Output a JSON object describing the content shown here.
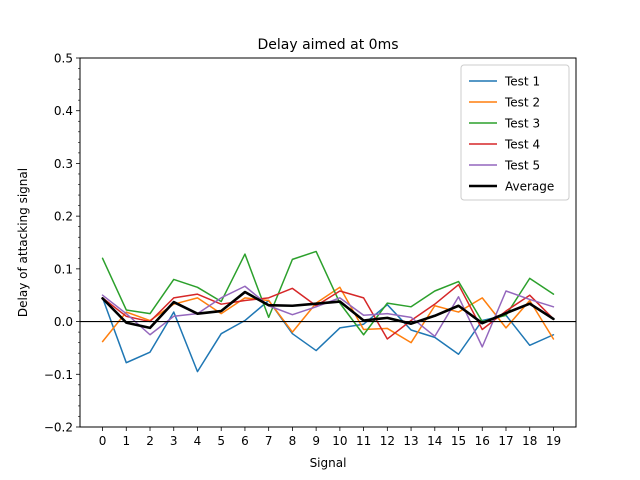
{
  "chart_data": {
    "type": "line",
    "title": "Delay aimed at 0ms",
    "xlabel": "Signal",
    "ylabel": "Delay of attacking signal",
    "x": [
      0,
      1,
      2,
      3,
      4,
      5,
      6,
      7,
      8,
      9,
      10,
      11,
      12,
      13,
      14,
      15,
      16,
      17,
      18,
      19
    ],
    "xlim": [
      -0.95,
      19.95
    ],
    "ylim": [
      -0.2,
      0.5
    ],
    "yticks": [
      -0.2,
      -0.1,
      0.0,
      0.1,
      0.2,
      0.3,
      0.4,
      0.5
    ],
    "ytick_labels": [
      "−0.2",
      "−0.1",
      "0.0",
      "0.1",
      "0.2",
      "0.3",
      "0.4",
      "0.5"
    ],
    "xtick_labels": [
      "0",
      "1",
      "2",
      "3",
      "4",
      "5",
      "6",
      "7",
      "8",
      "9",
      "10",
      "11",
      "12",
      "13",
      "14",
      "15",
      "16",
      "17",
      "18",
      "19"
    ],
    "hline_y": 0,
    "legend_position": "top-right",
    "series": [
      {
        "name": "Test 1",
        "color": "#1f77b4",
        "values": [
          0.045,
          -0.078,
          -0.058,
          0.018,
          -0.095,
          -0.023,
          0.002,
          0.04,
          -0.023,
          -0.055,
          -0.012,
          -0.005,
          0.032,
          -0.016,
          -0.03,
          -0.062,
          0.002,
          0.012,
          -0.045,
          -0.025
        ]
      },
      {
        "name": "Test 2",
        "color": "#ff7f0e",
        "values": [
          -0.038,
          0.018,
          0.002,
          0.033,
          0.045,
          0.015,
          0.045,
          0.04,
          -0.02,
          0.035,
          0.065,
          -0.015,
          -0.013,
          -0.04,
          0.03,
          0.018,
          0.045,
          -0.012,
          0.04,
          -0.033
        ]
      },
      {
        "name": "Test 3",
        "color": "#2ca02c",
        "values": [
          0.12,
          0.022,
          0.015,
          0.08,
          0.065,
          0.038,
          0.128,
          0.008,
          0.118,
          0.133,
          0.035,
          -0.025,
          0.035,
          0.028,
          0.058,
          0.076,
          0.0,
          0.012,
          0.082,
          0.052
        ]
      },
      {
        "name": "Test 4",
        "color": "#d62728",
        "values": [
          0.045,
          0.01,
          0.0,
          0.045,
          0.052,
          0.033,
          0.04,
          0.045,
          0.063,
          0.03,
          0.058,
          0.045,
          -0.033,
          0.002,
          0.033,
          0.07,
          -0.015,
          0.02,
          0.05,
          0.005
        ]
      },
      {
        "name": "Test 5",
        "color": "#9467bd",
        "values": [
          0.05,
          0.015,
          -0.025,
          0.01,
          0.015,
          0.045,
          0.067,
          0.03,
          0.013,
          0.028,
          0.045,
          0.012,
          0.015,
          0.008,
          -0.028,
          0.047,
          -0.048,
          0.058,
          0.042,
          0.028
        ]
      },
      {
        "name": "Average",
        "color": "#000000",
        "values": [
          0.044,
          -0.002,
          -0.012,
          0.037,
          0.015,
          0.02,
          0.056,
          0.031,
          0.03,
          0.034,
          0.038,
          0.002,
          0.007,
          -0.004,
          0.011,
          0.03,
          -0.003,
          0.016,
          0.034,
          0.005
        ]
      }
    ]
  }
}
